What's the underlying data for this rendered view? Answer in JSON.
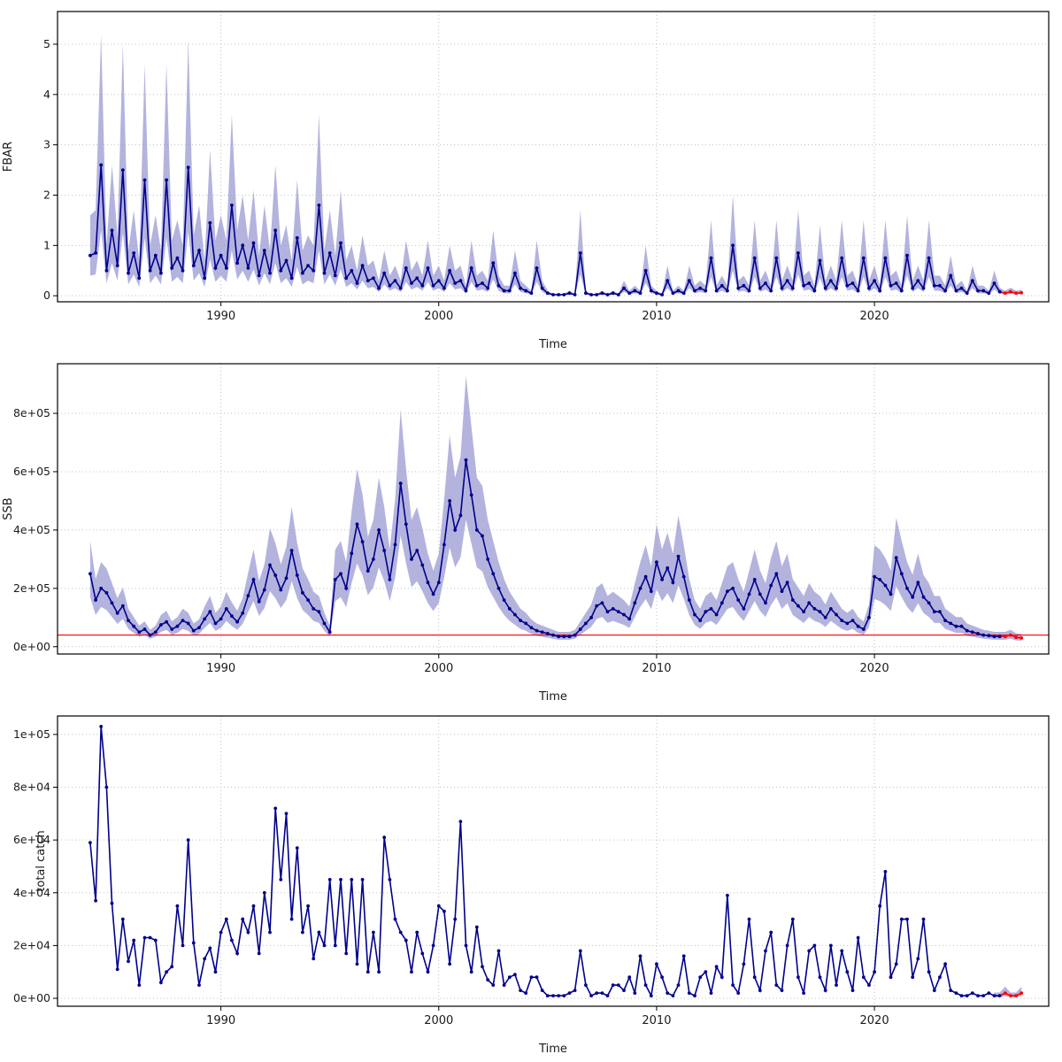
{
  "figure": {
    "background": "#ffffff",
    "xlabel": "Time"
  },
  "colors": {
    "line": "#00008B",
    "band": "#9999D3",
    "forecast": "#FF0000",
    "reference": "#FF0000",
    "grid": "#C0C0C0",
    "frame": "#000000"
  },
  "chart_data": [
    {
      "type": "line",
      "panel": "fbar",
      "ylabel": "FBAR",
      "xlabel": "Time",
      "x_start": 1984.0,
      "x_step": 0.25,
      "xlim": [
        1982.5,
        2028.0
      ],
      "ylim": [
        -0.12,
        5.65
      ],
      "x_ticks": [
        {
          "v": 1990,
          "label": "1990"
        },
        {
          "v": 2000,
          "label": "2000"
        },
        {
          "v": 2010,
          "label": "2010"
        },
        {
          "v": 2020,
          "label": "2020"
        }
      ],
      "y_ticks": [
        {
          "v": 0,
          "label": "0"
        },
        {
          "v": 1,
          "label": "1"
        },
        {
          "v": 2,
          "label": "2"
        },
        {
          "v": 3,
          "label": "3"
        },
        {
          "v": 4,
          "label": "4"
        },
        {
          "v": 5,
          "label": "5"
        }
      ],
      "band": {
        "lower_factor": 0.5,
        "upper_factor": 2.0,
        "forecast_only": false
      },
      "n_forecast": 4,
      "values": [
        0.8,
        0.85,
        2.6,
        0.5,
        1.3,
        0.6,
        2.5,
        0.45,
        0.85,
        0.35,
        2.3,
        0.5,
        0.8,
        0.45,
        2.3,
        0.55,
        0.75,
        0.5,
        2.55,
        0.6,
        0.9,
        0.35,
        1.45,
        0.55,
        0.8,
        0.55,
        1.8,
        0.65,
        1.0,
        0.55,
        1.05,
        0.4,
        0.9,
        0.45,
        1.3,
        0.5,
        0.7,
        0.35,
        1.15,
        0.45,
        0.6,
        0.5,
        1.8,
        0.45,
        0.85,
        0.4,
        1.05,
        0.35,
        0.5,
        0.25,
        0.6,
        0.3,
        0.35,
        0.15,
        0.45,
        0.2,
        0.3,
        0.15,
        0.55,
        0.25,
        0.35,
        0.2,
        0.55,
        0.2,
        0.3,
        0.15,
        0.5,
        0.25,
        0.3,
        0.1,
        0.55,
        0.2,
        0.25,
        0.15,
        0.65,
        0.2,
        0.1,
        0.1,
        0.45,
        0.15,
        0.1,
        0.05,
        0.55,
        0.15,
        0.05,
        0.02,
        0.02,
        0.02,
        0.05,
        0.02,
        0.85,
        0.05,
        0.02,
        0.02,
        0.05,
        0.02,
        0.05,
        0.02,
        0.15,
        0.05,
        0.1,
        0.05,
        0.5,
        0.1,
        0.05,
        0.02,
        0.3,
        0.05,
        0.1,
        0.05,
        0.3,
        0.1,
        0.15,
        0.1,
        0.75,
        0.1,
        0.2,
        0.1,
        1.0,
        0.15,
        0.2,
        0.1,
        0.75,
        0.15,
        0.25,
        0.1,
        0.75,
        0.15,
        0.3,
        0.15,
        0.85,
        0.2,
        0.25,
        0.1,
        0.7,
        0.15,
        0.3,
        0.15,
        0.75,
        0.2,
        0.25,
        0.1,
        0.75,
        0.15,
        0.3,
        0.1,
        0.75,
        0.2,
        0.25,
        0.1,
        0.8,
        0.15,
        0.3,
        0.15,
        0.75,
        0.2,
        0.2,
        0.1,
        0.4,
        0.1,
        0.15,
        0.05,
        0.3,
        0.1,
        0.1,
        0.05,
        0.25,
        0.08,
        0.05,
        0.08,
        0.05,
        0.06
      ]
    },
    {
      "type": "line",
      "panel": "ssb",
      "ylabel": "SSB",
      "xlabel": "Time",
      "x_start": 1984.0,
      "x_step": 0.25,
      "xlim": [
        1982.5,
        2028.0
      ],
      "ylim": [
        -25000,
        970000
      ],
      "x_ticks": [
        {
          "v": 1990,
          "label": "1990"
        },
        {
          "v": 2000,
          "label": "2000"
        },
        {
          "v": 2010,
          "label": "2010"
        },
        {
          "v": 2020,
          "label": "2020"
        }
      ],
      "y_ticks": [
        {
          "v": 0,
          "label": "0e+00"
        },
        {
          "v": 200000,
          "label": "2e+05"
        },
        {
          "v": 400000,
          "label": "4e+05"
        },
        {
          "v": 600000,
          "label": "6e+05"
        },
        {
          "v": 800000,
          "label": "8e+05"
        }
      ],
      "band": {
        "lower_factor": 0.68,
        "upper_factor": 1.45,
        "forecast_only": false
      },
      "ref_line": {
        "value": 40000
      },
      "n_forecast": 4,
      "values": [
        250000,
        160000,
        200000,
        185000,
        150000,
        115000,
        140000,
        90000,
        70000,
        50000,
        60000,
        40000,
        50000,
        75000,
        85000,
        60000,
        70000,
        90000,
        80000,
        55000,
        65000,
        95000,
        120000,
        80000,
        95000,
        130000,
        105000,
        85000,
        115000,
        175000,
        230000,
        155000,
        195000,
        280000,
        245000,
        195000,
        235000,
        330000,
        245000,
        185000,
        160000,
        130000,
        120000,
        80000,
        50000,
        230000,
        250000,
        200000,
        320000,
        420000,
        360000,
        260000,
        300000,
        400000,
        330000,
        230000,
        350000,
        560000,
        420000,
        300000,
        330000,
        280000,
        220000,
        180000,
        220000,
        350000,
        500000,
        400000,
        450000,
        640000,
        520000,
        400000,
        380000,
        300000,
        250000,
        200000,
        160000,
        130000,
        110000,
        90000,
        80000,
        65000,
        55000,
        50000,
        45000,
        40000,
        35000,
        35000,
        35000,
        40000,
        60000,
        80000,
        100000,
        140000,
        150000,
        120000,
        130000,
        120000,
        110000,
        95000,
        150000,
        200000,
        240000,
        190000,
        290000,
        230000,
        270000,
        220000,
        310000,
        240000,
        160000,
        110000,
        90000,
        120000,
        130000,
        110000,
        150000,
        190000,
        200000,
        160000,
        130000,
        180000,
        230000,
        180000,
        150000,
        210000,
        250000,
        190000,
        220000,
        160000,
        140000,
        120000,
        150000,
        130000,
        120000,
        100000,
        130000,
        110000,
        90000,
        80000,
        90000,
        70000,
        60000,
        100000,
        240000,
        230000,
        210000,
        180000,
        305000,
        250000,
        200000,
        170000,
        220000,
        170000,
        150000,
        120000,
        120000,
        90000,
        80000,
        70000,
        70000,
        55000,
        50000,
        45000,
        40000,
        38000,
        35000,
        35000,
        35000,
        40000,
        32000,
        30000
      ]
    },
    {
      "type": "line",
      "panel": "total-catch",
      "ylabel": "total catch",
      "xlabel": "Time",
      "x_start": 1984.0,
      "x_step": 0.25,
      "xlim": [
        1982.5,
        2028.0
      ],
      "ylim": [
        -3000,
        107000
      ],
      "x_ticks": [
        {
          "v": 1990,
          "label": "1990"
        },
        {
          "v": 2000,
          "label": "2000"
        },
        {
          "v": 2010,
          "label": "2010"
        },
        {
          "v": 2020,
          "label": "2020"
        }
      ],
      "y_ticks": [
        {
          "v": 0,
          "label": "0e+00"
        },
        {
          "v": 20000,
          "label": "2e+04"
        },
        {
          "v": 40000,
          "label": "4e+04"
        },
        {
          "v": 60000,
          "label": "6e+04"
        },
        {
          "v": 80000,
          "label": "8e+04"
        },
        {
          "v": 100000,
          "label": "1e+05"
        }
      ],
      "band": {
        "lower_factor": 0.4,
        "upper_factor": 2.2,
        "forecast_only": true
      },
      "n_forecast": 4,
      "values": [
        59000,
        37000,
        103000,
        80000,
        36000,
        11000,
        30000,
        14000,
        22000,
        5000,
        23000,
        23000,
        22000,
        6000,
        10000,
        12000,
        35000,
        20000,
        60000,
        21000,
        5000,
        15000,
        19000,
        10000,
        25000,
        30000,
        22000,
        17000,
        30000,
        25000,
        35000,
        17000,
        40000,
        25000,
        72000,
        45000,
        70000,
        30000,
        57000,
        25000,
        35000,
        15000,
        25000,
        20000,
        45000,
        20000,
        45000,
        17000,
        45000,
        13000,
        45000,
        10000,
        25000,
        10000,
        61000,
        45000,
        30000,
        25000,
        22000,
        10000,
        25000,
        17000,
        10000,
        20000,
        35000,
        33000,
        13000,
        30000,
        67000,
        20000,
        10000,
        27000,
        12000,
        7000,
        5000,
        18000,
        5000,
        8000,
        9000,
        3000,
        2000,
        8000,
        8000,
        3000,
        1000,
        1000,
        1000,
        1000,
        2000,
        3000,
        18000,
        5000,
        1000,
        2000,
        2000,
        1000,
        5000,
        5000,
        3000,
        8000,
        2000,
        16000,
        5000,
        1000,
        13000,
        8000,
        2000,
        1000,
        5000,
        16000,
        2000,
        1000,
        8000,
        10000,
        2000,
        12000,
        8000,
        39000,
        5000,
        2000,
        13000,
        30000,
        8000,
        3000,
        18000,
        25000,
        5000,
        3000,
        20000,
        30000,
        8000,
        2000,
        18000,
        20000,
        8000,
        3000,
        20000,
        5000,
        18000,
        10000,
        3000,
        23000,
        8000,
        5000,
        10000,
        35000,
        48000,
        8000,
        13000,
        30000,
        30000,
        8000,
        15000,
        30000,
        10000,
        3000,
        8000,
        13000,
        3000,
        2000,
        1000,
        1000,
        2000,
        1000,
        1000,
        2000,
        1000,
        1000,
        2000,
        1000,
        1000,
        2000
      ]
    }
  ]
}
